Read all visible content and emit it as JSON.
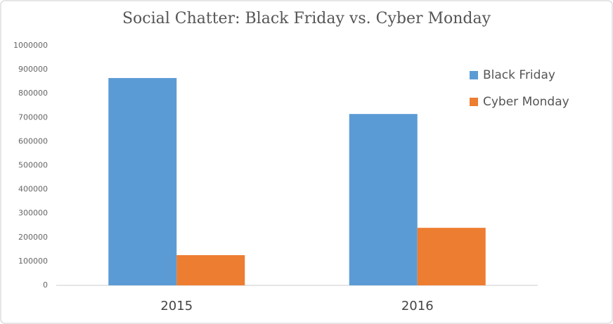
{
  "chart_data": {
    "type": "bar",
    "title": "Social Chatter: Black Friday vs. Cyber Monday",
    "categories": [
      "2015",
      "2016"
    ],
    "series": [
      {
        "name": "Black Friday",
        "color": "#5b9bd5",
        "values": [
          865000,
          715000
        ]
      },
      {
        "name": "Cyber Monday",
        "color": "#ed7d31",
        "values": [
          126000,
          240000
        ]
      }
    ],
    "ylim": [
      0,
      1000000
    ],
    "yticks": [
      0,
      100000,
      200000,
      300000,
      400000,
      500000,
      600000,
      700000,
      800000,
      900000,
      1000000
    ],
    "grid": false,
    "legend": "right"
  }
}
